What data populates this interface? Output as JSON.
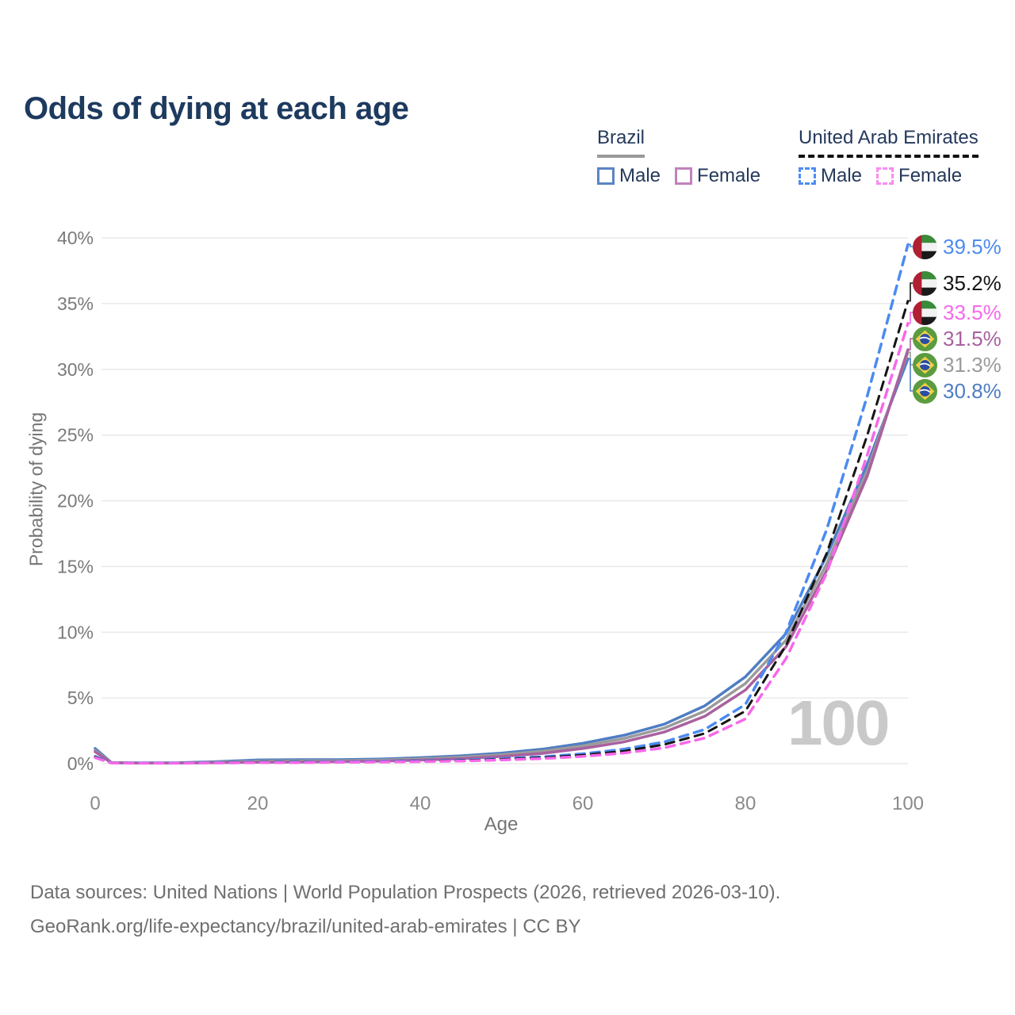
{
  "title": "Odds of dying at each age",
  "watermark": "100",
  "legend": {
    "groups": [
      {
        "label": "Brazil",
        "line_style": "solid",
        "line_color": "#999999",
        "items": [
          {
            "label": "Male",
            "color": "#5b84c4",
            "style": "solid"
          },
          {
            "label": "Female",
            "color": "#c083bb",
            "style": "solid"
          }
        ]
      },
      {
        "label": "United Arab Emirates",
        "line_style": "dashed",
        "line_color": "#111111",
        "items": [
          {
            "label": "Male",
            "color": "#4d8ef2",
            "style": "dashed"
          },
          {
            "label": "Female",
            "color": "#f98bf0",
            "style": "dashed"
          }
        ]
      }
    ]
  },
  "chart_data": {
    "type": "line",
    "title": "Odds of dying at each age",
    "xlabel": "Age",
    "ylabel": "Probability of dying",
    "xlim": [
      0,
      100
    ],
    "ylim": [
      0,
      40
    ],
    "x_ticks": [
      0,
      20,
      40,
      60,
      80,
      100
    ],
    "x_tick_labels": [
      "0",
      "20",
      "40",
      "60",
      "80",
      "100"
    ],
    "y_ticks": [
      0,
      5,
      10,
      15,
      20,
      25,
      30,
      35,
      40
    ],
    "y_tick_labels": [
      "0%",
      "5%",
      "10%",
      "15%",
      "20%",
      "25%",
      "30%",
      "35%",
      "40%"
    ],
    "grid": true,
    "legend_position": "top-right",
    "x": [
      0,
      2,
      5,
      10,
      15,
      20,
      25,
      30,
      35,
      40,
      45,
      50,
      55,
      60,
      65,
      70,
      75,
      80,
      85,
      90,
      95,
      100
    ],
    "series": [
      {
        "name": "Brazil Male",
        "country": "br",
        "sex": "male",
        "color": "#4f7dc3",
        "dashed": false,
        "values": [
          1.15,
          0.08,
          0.06,
          0.06,
          0.15,
          0.28,
          0.3,
          0.3,
          0.35,
          0.45,
          0.6,
          0.8,
          1.1,
          1.55,
          2.15,
          3.0,
          4.4,
          6.6,
          9.9,
          15.8,
          22.8,
          30.8
        ],
        "end_label": "30.8%"
      },
      {
        "name": "Brazil All",
        "country": "br",
        "sex": "all",
        "color": "#9b9b9b",
        "dashed": false,
        "values": [
          1.0,
          0.07,
          0.05,
          0.05,
          0.11,
          0.19,
          0.21,
          0.22,
          0.27,
          0.36,
          0.49,
          0.68,
          0.95,
          1.35,
          1.9,
          2.7,
          4.0,
          6.1,
          9.4,
          15.2,
          22.3,
          31.3
        ],
        "end_label": "31.3%"
      },
      {
        "name": "Brazil Female",
        "country": "br",
        "sex": "female",
        "color": "#a9619f",
        "dashed": false,
        "values": [
          0.9,
          0.06,
          0.04,
          0.04,
          0.07,
          0.1,
          0.12,
          0.15,
          0.19,
          0.27,
          0.38,
          0.55,
          0.78,
          1.15,
          1.65,
          2.4,
          3.6,
          5.6,
          8.9,
          14.7,
          21.9,
          31.5
        ],
        "end_label": "31.5%"
      },
      {
        "name": "United Arab Emirates Male",
        "country": "ae",
        "sex": "male",
        "color": "#4b8bf0",
        "dashed": true,
        "values": [
          0.55,
          0.05,
          0.04,
          0.04,
          0.07,
          0.12,
          0.13,
          0.14,
          0.17,
          0.21,
          0.28,
          0.38,
          0.52,
          0.75,
          1.1,
          1.65,
          2.6,
          4.5,
          10.0,
          17.8,
          28.0,
          39.5
        ],
        "end_label": "39.5%"
      },
      {
        "name": "United Arab Emirates All",
        "country": "ae",
        "sex": "all",
        "color": "#151515",
        "dashed": true,
        "values": [
          0.5,
          0.04,
          0.03,
          0.03,
          0.06,
          0.1,
          0.11,
          0.12,
          0.14,
          0.18,
          0.24,
          0.33,
          0.45,
          0.65,
          0.95,
          1.45,
          2.3,
          4.0,
          9.0,
          16.0,
          25.0,
          35.2
        ],
        "end_label": "35.2%"
      },
      {
        "name": "United Arab Emirates Female",
        "country": "ae",
        "sex": "female",
        "color": "#f768ea",
        "dashed": true,
        "values": [
          0.45,
          0.04,
          0.03,
          0.03,
          0.05,
          0.07,
          0.08,
          0.1,
          0.12,
          0.15,
          0.2,
          0.28,
          0.38,
          0.55,
          0.8,
          1.2,
          1.95,
          3.4,
          8.0,
          14.5,
          23.5,
          33.5
        ],
        "end_label": "33.5%"
      }
    ]
  },
  "footer": {
    "line1": "Data sources: United Nations | World Population Prospects (2026, retrieved 2026-03-10).",
    "line2": "GeoRank.org/life-expectancy/brazil/united-arab-emirates | CC BY"
  }
}
